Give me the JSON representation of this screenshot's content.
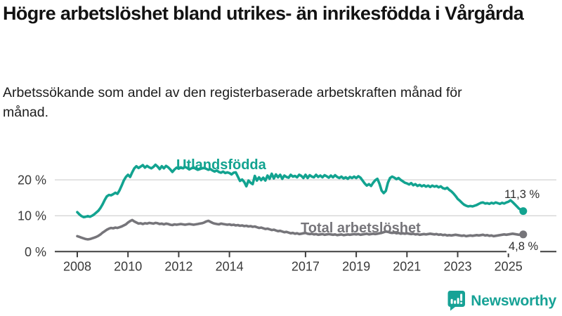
{
  "header": {
    "title": "Högre arbetslöshet bland utrikes- än inrikesfödda i Vårgårda",
    "subtitle": "Arbetssökande som andel av den registerbaserade arbetskraften månad för månad."
  },
  "footer": {
    "brand": "Newsworthy",
    "brand_color": "#17a296",
    "logo_icon": "bar-chart-speech-bubble-icon"
  },
  "chart_data": {
    "type": "line",
    "title": "Högre arbetslöshet bland utrikes- än inrikesfödda i Vårgårda",
    "subtitle": "Arbetssökande som andel av den registerbaserade arbetskraften månad för månad.",
    "x_start_year": 2008,
    "x_end": "2025-08",
    "x_step": "monthly",
    "grid": "horizontal",
    "ylim": [
      0,
      26
    ],
    "colors": {
      "grid": "#d9d9d9",
      "axis": "#3f3f3f",
      "tick_text": "#3a3a3a"
    },
    "x_ticks": [
      "2008",
      "2010",
      "2012",
      "2014",
      "2017",
      "2019",
      "2021",
      "2023",
      "2025"
    ],
    "y_ticks": [
      {
        "value": 0,
        "label": "0 %"
      },
      {
        "value": 10,
        "label": "10 %"
      },
      {
        "value": 20,
        "label": "20 %"
      }
    ],
    "series": [
      {
        "name": "Utlandsfödda",
        "color": "#12a390",
        "end_label": "11,3 %",
        "end_value": 11.3,
        "values": [
          11.0,
          10.4,
          9.9,
          9.6,
          9.7,
          9.9,
          9.7,
          10.0,
          10.4,
          10.9,
          11.4,
          12.2,
          13.2,
          14.4,
          15.4,
          15.8,
          15.7,
          16.0,
          16.4,
          16.1,
          17.1,
          18.4,
          19.8,
          20.8,
          21.4,
          20.8,
          22.1,
          23.2,
          23.8,
          23.3,
          23.7,
          24.1,
          23.4,
          23.9,
          23.5,
          23.2,
          23.6,
          24.2,
          23.7,
          23.0,
          23.8,
          23.2,
          23.9,
          23.5,
          22.9,
          22.2,
          22.9,
          23.4,
          23.1,
          23.5,
          23.2,
          23.6,
          23.3,
          22.9,
          23.2,
          23.5,
          23.1,
          22.8,
          23.0,
          23.2,
          23.3,
          23.1,
          22.8,
          23.0,
          22.6,
          22.3,
          22.6,
          22.2,
          22.0,
          22.3,
          21.9,
          22.1,
          21.9,
          21.5,
          22.0,
          22.1,
          20.9,
          19.7,
          20.1,
          19.4,
          18.2,
          19.8,
          19.2,
          18.8,
          21.1,
          19.8,
          20.7,
          19.9,
          20.6,
          19.8,
          21.2,
          20.3,
          21.7,
          20.4,
          21.5,
          20.7,
          21.4,
          20.3,
          21.2,
          20.8,
          20.6,
          21.4,
          20.9,
          21.1,
          20.7,
          21.4,
          21.1,
          20.5,
          21.4,
          20.5,
          21.3,
          20.9,
          20.7,
          21.4,
          20.8,
          21.2,
          20.7,
          21.3,
          21.0,
          20.6,
          21.2,
          20.7,
          21.3,
          20.8,
          20.5,
          20.9,
          20.4,
          20.7,
          20.3,
          20.8,
          20.5,
          20.9,
          20.5,
          21.0,
          20.6,
          19.8,
          19.0,
          18.4,
          18.8,
          18.3,
          19.2,
          19.9,
          20.3,
          18.9,
          17.0,
          16.3,
          16.9,
          19.2,
          20.5,
          20.9,
          20.6,
          20.2,
          20.5,
          20.0,
          19.6,
          19.2,
          19.0,
          18.7,
          19.1,
          18.5,
          18.8,
          18.3,
          18.6,
          18.2,
          18.5,
          18.1,
          18.4,
          18.0,
          18.4,
          18.1,
          18.3,
          17.9,
          18.2,
          17.7,
          17.5,
          17.8,
          17.2,
          16.8,
          16.2,
          15.5,
          14.7,
          14.2,
          13.6,
          13.1,
          12.8,
          12.6,
          12.7,
          12.6,
          12.8,
          13.0,
          13.3,
          13.6,
          13.7,
          13.4,
          13.5,
          13.3,
          13.6,
          13.4,
          13.7,
          13.5,
          13.3,
          13.6,
          13.4,
          13.7,
          13.9,
          14.3,
          13.8,
          13.2,
          12.6,
          12.0,
          11.6,
          11.3
        ]
      },
      {
        "name": "Total arbetslöshet",
        "color": "#76757a",
        "end_label": "4,8 %",
        "end_value": 4.8,
        "values": [
          4.3,
          4.1,
          3.9,
          3.7,
          3.5,
          3.4,
          3.5,
          3.7,
          3.9,
          4.1,
          4.4,
          4.8,
          5.3,
          5.7,
          6.1,
          6.4,
          6.6,
          6.5,
          6.7,
          6.6,
          6.8,
          7.0,
          7.3,
          7.6,
          8.1,
          8.5,
          8.8,
          8.4,
          8.1,
          7.8,
          7.9,
          7.7,
          7.9,
          7.8,
          8.0,
          7.9,
          7.8,
          8.0,
          7.9,
          7.7,
          7.8,
          7.6,
          7.8,
          7.7,
          7.5,
          7.4,
          7.6,
          7.5,
          7.6,
          7.7,
          7.6,
          7.5,
          7.6,
          7.7,
          7.6,
          7.5,
          7.6,
          7.7,
          7.8,
          7.9,
          8.1,
          8.4,
          8.6,
          8.3,
          8.0,
          7.8,
          7.7,
          7.6,
          7.8,
          7.7,
          7.6,
          7.5,
          7.6,
          7.4,
          7.5,
          7.3,
          7.4,
          7.2,
          7.3,
          7.1,
          7.2,
          7.0,
          7.1,
          6.9,
          7.0,
          6.8,
          6.6,
          6.7,
          6.5,
          6.3,
          6.4,
          6.2,
          6.0,
          6.1,
          5.9,
          5.7,
          5.8,
          5.6,
          5.4,
          5.5,
          5.3,
          5.1,
          5.2,
          5.0,
          5.1,
          4.9,
          5.0,
          5.1,
          5.2,
          5.0,
          4.9,
          5.0,
          4.8,
          4.9,
          4.7,
          4.8,
          4.9,
          4.7,
          4.8,
          4.9,
          4.8,
          4.7,
          4.8,
          4.6,
          4.7,
          4.8,
          4.6,
          4.7,
          4.8,
          4.7,
          4.8,
          4.9,
          4.8,
          4.9,
          4.7,
          4.8,
          4.9,
          5.0,
          4.8,
          4.9,
          5.0,
          4.9,
          5.0,
          5.1,
          5.2,
          5.4,
          5.6,
          5.5,
          5.3,
          5.2,
          5.3,
          5.1,
          5.2,
          5.0,
          5.1,
          5.0,
          5.1,
          5.0,
          4.9,
          5.0,
          4.8,
          4.9,
          4.7,
          4.8,
          4.9,
          4.8,
          4.9,
          5.0,
          4.9,
          4.8,
          4.9,
          4.7,
          4.8,
          4.6,
          4.7,
          4.5,
          4.6,
          4.5,
          4.6,
          4.7,
          4.6,
          4.5,
          4.4,
          4.5,
          4.3,
          4.4,
          4.5,
          4.4,
          4.5,
          4.6,
          4.5,
          4.6,
          4.7,
          4.5,
          4.6,
          4.4,
          4.5,
          4.3,
          4.4,
          4.5,
          4.6,
          4.7,
          4.8,
          4.7,
          4.8,
          4.9,
          5.0,
          4.9,
          4.8,
          4.7,
          4.8,
          4.8
        ]
      }
    ]
  }
}
